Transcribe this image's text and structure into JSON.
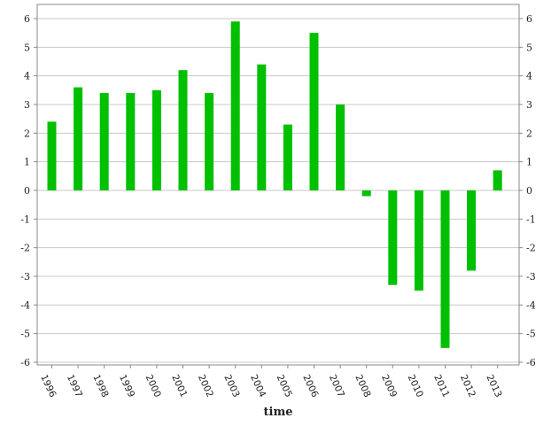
{
  "chart_data": {
    "type": "bar",
    "categories": [
      "1996",
      "1997",
      "1998",
      "1999",
      "2000",
      "2001",
      "2002",
      "2003",
      "2004",
      "2005",
      "2006",
      "2007",
      "2008",
      "2009",
      "2010",
      "2011",
      "2012",
      "2013"
    ],
    "values": [
      2.4,
      3.6,
      3.4,
      3.4,
      3.5,
      4.2,
      3.4,
      5.9,
      4.4,
      2.3,
      5.5,
      3.0,
      -0.2,
      -3.3,
      -3.5,
      -5.5,
      -2.8,
      0.7
    ],
    "title": "",
    "xlabel": "time",
    "ylabel": "",
    "ylim": [
      -6,
      6
    ],
    "yticks": [
      "-6",
      "-5",
      "-4",
      "-3",
      "-2",
      "-1",
      "0",
      "1",
      "2",
      "3",
      "4",
      "5",
      "6"
    ],
    "grid": true,
    "legend": "none",
    "bar_color": "#00c000"
  }
}
